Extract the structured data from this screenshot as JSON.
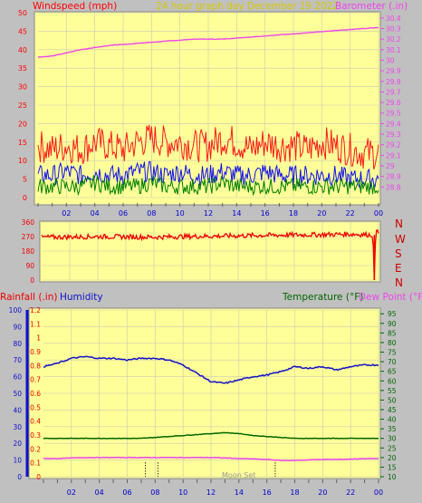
{
  "header": {
    "wind_title": "Windspeed (mph)",
    "graph_title": "24 hour graph day   December 19 2022",
    "baro_title": "Barometer (.in)"
  },
  "bottom_header": {
    "rain_title": "Rainfall (.in)",
    "humidity_title": "Humidity",
    "temp_title": "Temperature (°F)",
    "dew_title": "Dew Point (°F)"
  },
  "direction_labels": [
    "N",
    "W",
    "S",
    "E",
    "N"
  ],
  "moon_label": "Moon Set",
  "colors": {
    "panel_bg": "#ffff99",
    "page_bg": "#c0c0c0",
    "grid": "#c8c8b4",
    "wind_title": "#ff0000",
    "graph_title": "#d4c800",
    "baro": "#ee44ee",
    "gust": "#ff1a1a",
    "avg_wind": "#1010ee",
    "low_wind": "#008000",
    "direction": "#ee0000",
    "dir_labels": "#cc0000",
    "rain": "#ee0000",
    "humidity": "#1010cc",
    "temperature": "#006600",
    "dewpoint": "#ee44ee",
    "time_labels": "#0000cc"
  },
  "chart_data": [
    {
      "type": "line",
      "name": "wind-barometer",
      "x_ticks": [
        "02",
        "04",
        "06",
        "08",
        "10",
        "12",
        "14",
        "16",
        "18",
        "20",
        "22",
        "00"
      ],
      "y_left_ticks": [
        "0",
        "5",
        "10",
        "15",
        "20",
        "25",
        "30",
        "35",
        "40",
        "45",
        "50"
      ],
      "y_left_range": [
        0,
        50
      ],
      "y_right_ticks": [
        "28.8",
        "28.9",
        "29",
        "29.1",
        "29.2",
        "29.3",
        "29.4",
        "29.5",
        "29.6",
        "29.7",
        "29.8",
        "29.9",
        "30",
        "30.1",
        "30.2",
        "30.3",
        "30.4"
      ],
      "y_right_range": [
        28.7,
        30.45
      ],
      "x_range_hours": [
        0,
        24
      ],
      "series": [
        {
          "name": "Barometer",
          "x": [
            0,
            1,
            2,
            3,
            4,
            5,
            6,
            7,
            8,
            9,
            10,
            11,
            12,
            13,
            14,
            15,
            16,
            17,
            18,
            19,
            20,
            21,
            22,
            23,
            24
          ],
          "y": [
            30.03,
            30.04,
            30.07,
            30.1,
            30.12,
            30.14,
            30.15,
            30.16,
            30.17,
            30.18,
            30.19,
            30.2,
            30.2,
            30.2,
            30.21,
            30.22,
            30.23,
            30.24,
            30.25,
            30.26,
            30.27,
            30.28,
            30.29,
            30.3,
            30.31
          ]
        },
        {
          "name": "Gust",
          "x": [
            0,
            1,
            2,
            3,
            4,
            5,
            6,
            7,
            8,
            9,
            10,
            11,
            12,
            13,
            14,
            15,
            16,
            17,
            18,
            19,
            20,
            21,
            22,
            23,
            24
          ],
          "y": [
            14,
            13,
            14,
            13,
            15,
            14,
            13,
            15,
            16,
            15,
            15,
            14,
            14,
            16,
            15,
            13,
            15,
            14,
            14,
            13,
            15,
            14,
            13,
            12,
            12
          ]
        },
        {
          "name": "Average wind",
          "x": [
            0,
            1,
            2,
            3,
            4,
            5,
            6,
            7,
            8,
            9,
            10,
            11,
            12,
            13,
            14,
            15,
            16,
            17,
            18,
            19,
            20,
            21,
            22,
            23,
            24
          ],
          "y": [
            6,
            6,
            7,
            6,
            7,
            6,
            6,
            7,
            7,
            6,
            7,
            6,
            6,
            7,
            6,
            6,
            7,
            6,
            6,
            6,
            6,
            6,
            5,
            5,
            5
          ]
        },
        {
          "name": "Low wind",
          "x": [
            0,
            1,
            2,
            3,
            4,
            5,
            6,
            7,
            8,
            9,
            10,
            11,
            12,
            13,
            14,
            15,
            16,
            17,
            18,
            19,
            20,
            21,
            22,
            23,
            24
          ],
          "y": [
            3,
            3,
            3,
            3,
            4,
            3,
            3,
            3,
            4,
            3,
            3,
            3,
            3,
            4,
            3,
            3,
            3,
            3,
            3,
            3,
            3,
            3,
            3,
            3,
            3
          ]
        }
      ]
    },
    {
      "type": "line",
      "name": "wind-direction",
      "y_ticks": [
        "360",
        "270",
        "180",
        "90",
        "0"
      ],
      "y_range": [
        0,
        360
      ],
      "series": [
        {
          "name": "Direction",
          "x": [
            0,
            2,
            4,
            6,
            8,
            10,
            12,
            14,
            16,
            18,
            20,
            22,
            23.6,
            23.7,
            23.8,
            24
          ],
          "y": [
            265,
            268,
            270,
            268,
            266,
            270,
            272,
            275,
            278,
            280,
            282,
            285,
            280,
            0,
            300,
            295
          ]
        }
      ]
    },
    {
      "type": "line",
      "name": "humidity-temperature",
      "x_ticks": [
        "02",
        "04",
        "06",
        "08",
        "10",
        "12",
        "14",
        "16",
        "18",
        "20",
        "22",
        "00"
      ],
      "y_left_ticks": [
        "0",
        "10",
        "20",
        "30",
        "40",
        "50",
        "60",
        "70",
        "80",
        "90",
        "100"
      ],
      "y_left_range": [
        0,
        100
      ],
      "y_rain_ticks": [
        "0",
        "0.1",
        "0.2",
        "0.3",
        "0.4",
        "0.5",
        "0.6",
        "0.7",
        "0.8",
        "0.9",
        "1",
        "1.1",
        "1.2"
      ],
      "y_rain_range": [
        0,
        1.2
      ],
      "y_right_ticks": [
        "10",
        "15",
        "20",
        "25",
        "30",
        "35",
        "40",
        "45",
        "50",
        "55",
        "60",
        "65",
        "70",
        "75",
        "80",
        "85",
        "90",
        "95"
      ],
      "y_right_range": [
        10,
        97
      ],
      "series": [
        {
          "name": "Humidity",
          "x": [
            0,
            1,
            2,
            3,
            4,
            5,
            6,
            7,
            8,
            9,
            10,
            11,
            12,
            13,
            14,
            15,
            16,
            17,
            18,
            19,
            20,
            21,
            22,
            23,
            24
          ],
          "y": [
            66,
            68,
            71,
            72,
            71,
            71,
            70,
            71,
            71,
            70,
            67,
            62,
            57,
            56,
            58,
            60,
            61,
            63,
            66,
            65,
            66,
            64,
            66,
            67,
            67
          ]
        },
        {
          "name": "Temperature",
          "x": [
            0,
            1,
            2,
            3,
            4,
            5,
            6,
            7,
            8,
            9,
            10,
            11,
            12,
            13,
            14,
            15,
            16,
            17,
            18,
            19,
            20,
            21,
            22,
            23,
            24
          ],
          "y": [
            30,
            30,
            30,
            30,
            30,
            30,
            30,
            30,
            30.5,
            31,
            31.5,
            32,
            32.5,
            33,
            32.5,
            31.5,
            31,
            30.5,
            30,
            30,
            30,
            30,
            30,
            30,
            30
          ]
        },
        {
          "name": "Dew Point",
          "x": [
            0,
            1,
            2,
            3,
            4,
            5,
            6,
            7,
            8,
            9,
            10,
            11,
            12,
            13,
            14,
            15,
            16,
            17,
            18,
            19,
            20,
            21,
            22,
            23,
            24
          ],
          "y": [
            19.5,
            19.5,
            19.8,
            20,
            20,
            20,
            20,
            20,
            20,
            20,
            20,
            20,
            20,
            19.8,
            19.5,
            19.3,
            19,
            18.5,
            18.5,
            18.8,
            19,
            19,
            19.2,
            19.5,
            19.5
          ]
        },
        {
          "name": "Rainfall",
          "x": [
            0,
            24
          ],
          "y": [
            0,
            0
          ]
        }
      ],
      "markers_hours": [
        7.3,
        8.2,
        16.6
      ]
    }
  ]
}
